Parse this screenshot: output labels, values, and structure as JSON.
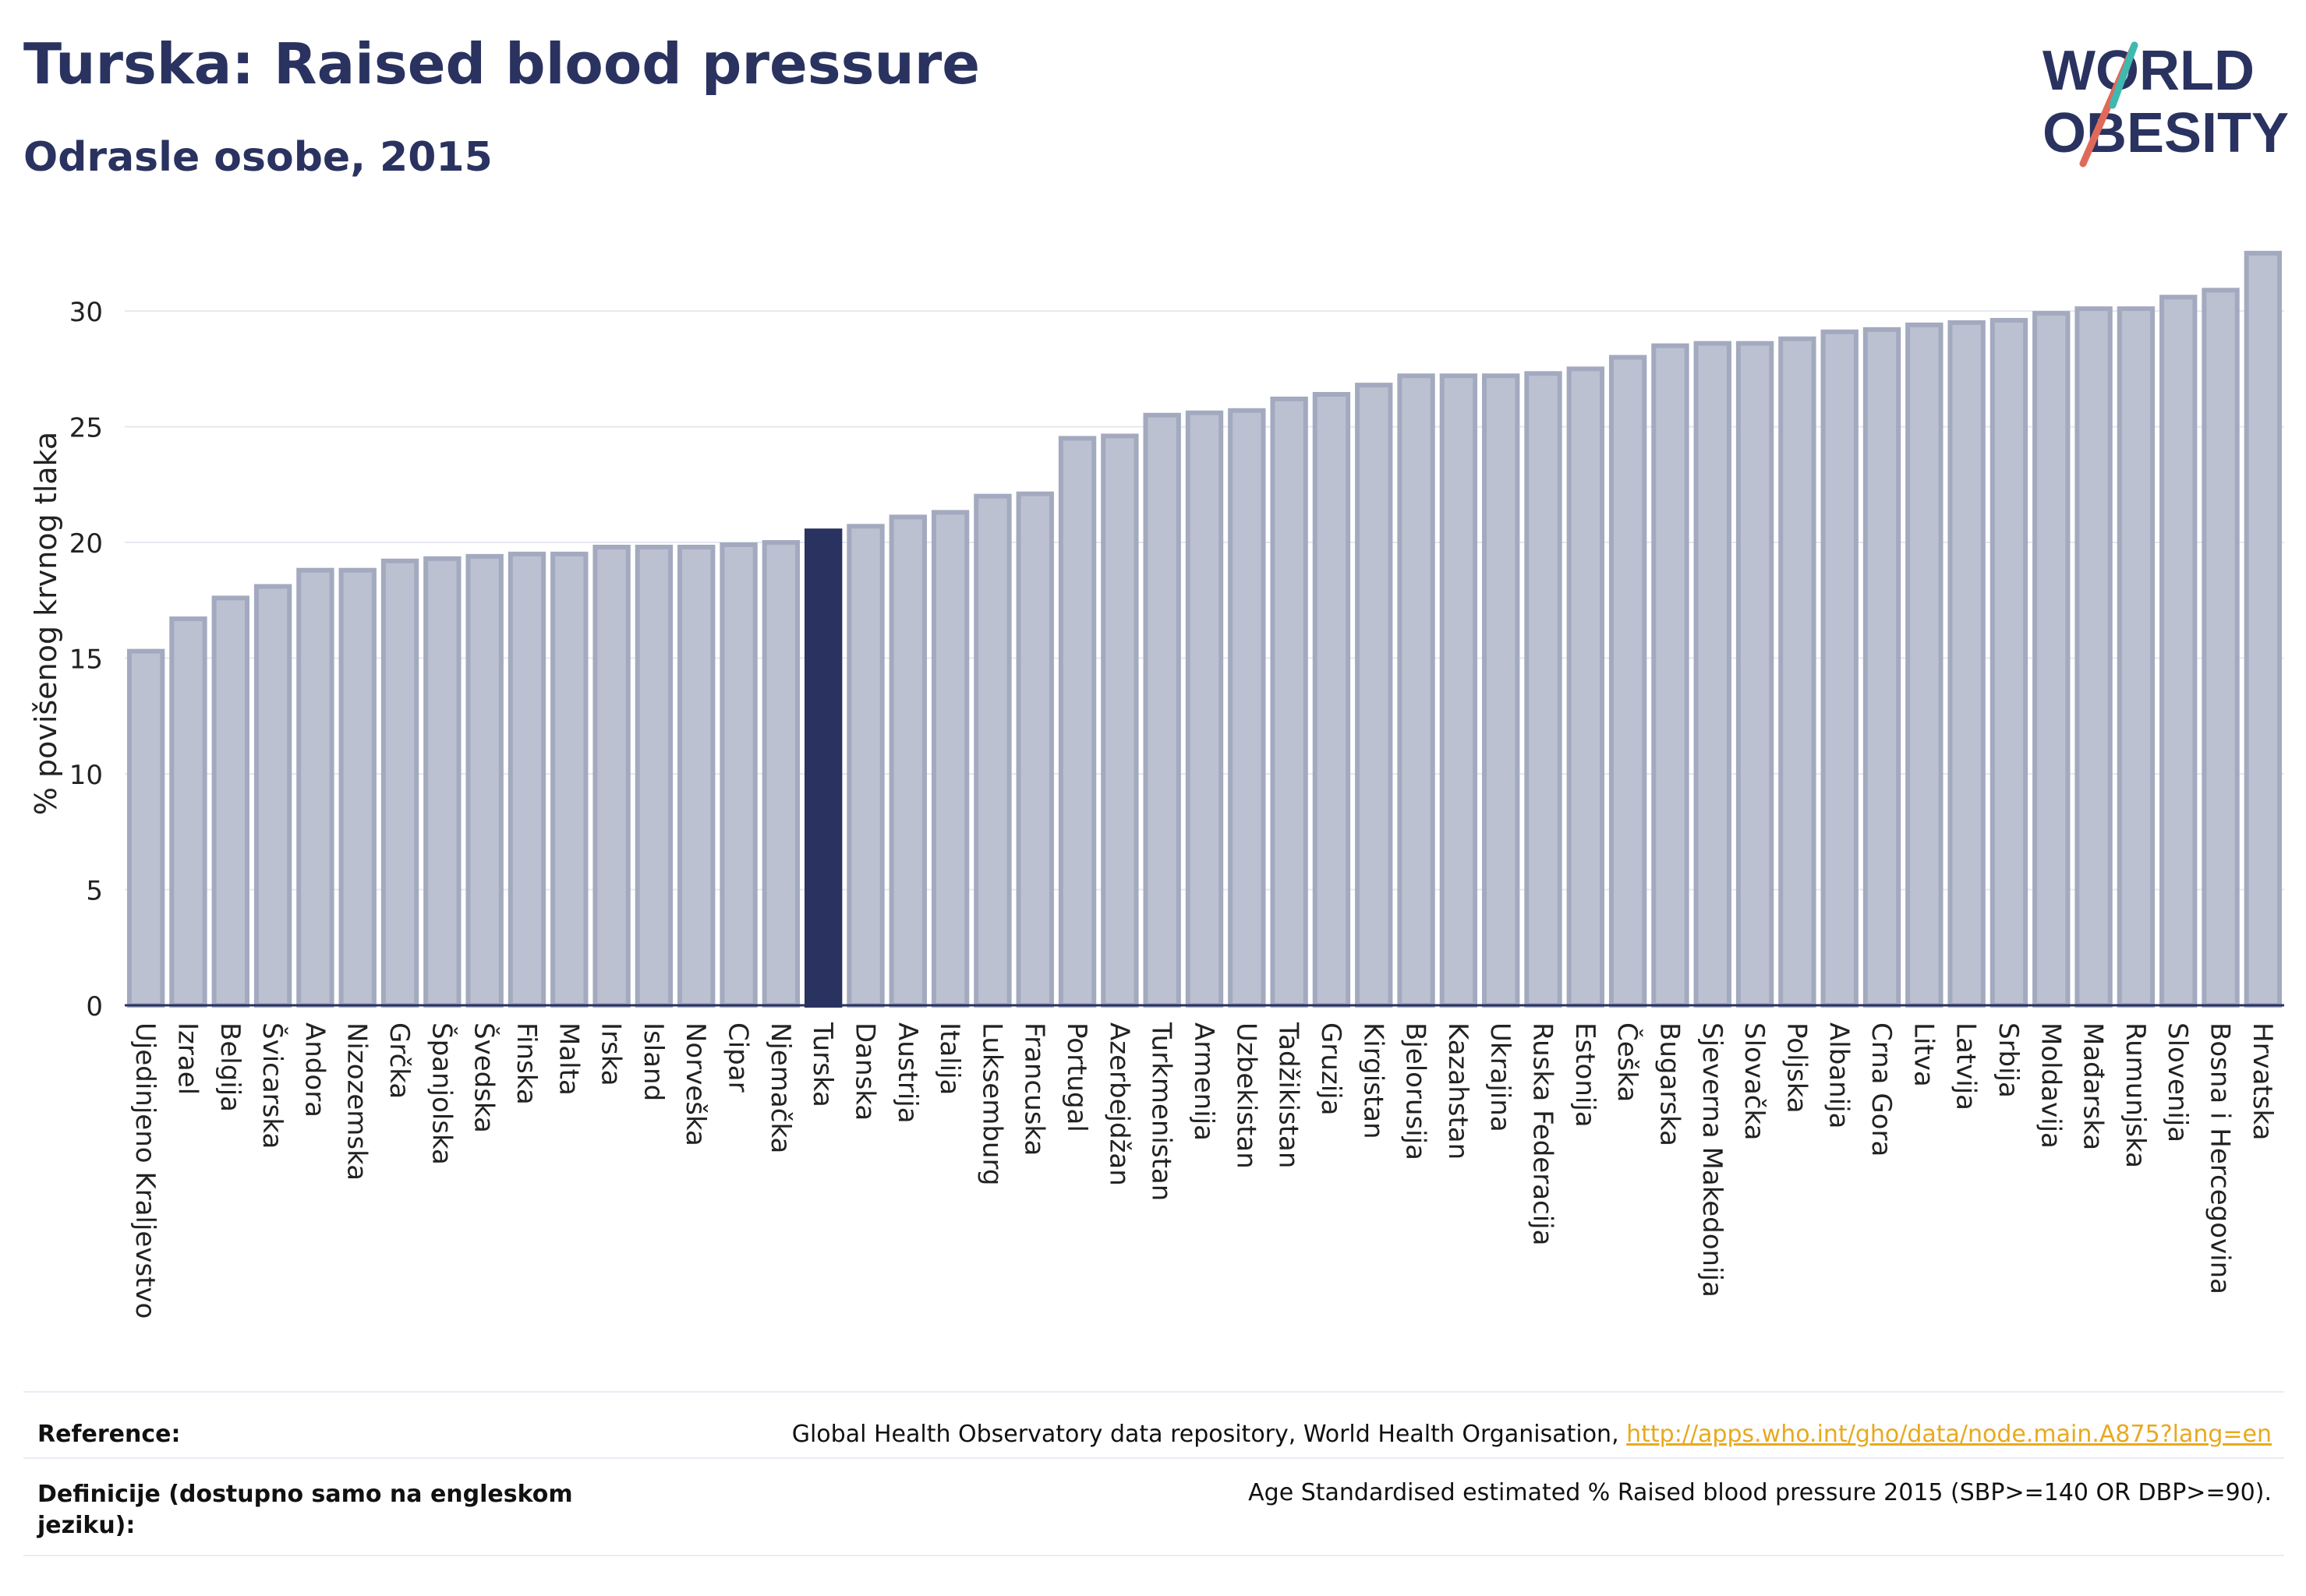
{
  "header": {
    "title": "Turska: Raised blood pressure",
    "subtitle": "Odrasle osobe, 2015"
  },
  "logo": {
    "line1": "WORLD",
    "line2": "OBESITY"
  },
  "colors": {
    "bar": "#bcc1d1",
    "bar_stroke": "#a3aabf",
    "highlight": "#2a3260",
    "text": "#2a3260",
    "link": "#e8a91e"
  },
  "chart_data": {
    "type": "bar",
    "ylabel": "% povišenog krvnog tlaka",
    "ylim": [
      0,
      33
    ],
    "yticks": [
      0,
      5,
      10,
      15,
      20,
      25,
      30
    ],
    "grid": true,
    "highlight": "Turska",
    "categories": [
      "Ujedinjeno Kraljevstvo",
      "Izrael",
      "Belgija",
      "Švicarska",
      "Andora",
      "Nizozemska",
      "Grčka",
      "Španjolska",
      "Švedska",
      "Finska",
      "Malta",
      "Irska",
      "Island",
      "Norveška",
      "Cipar",
      "Njemačka",
      "Turska",
      "Danska",
      "Austrija",
      "Italija",
      "Luksemburg",
      "Francuska",
      "Portugal",
      "Azerbejdžan",
      "Turkmenistan",
      "Armenija",
      "Uzbekistan",
      "Tadžikistan",
      "Gruzija",
      "Kirgistan",
      "Bjelorusija",
      "Kazahstan",
      "Ukrajina",
      "Ruska Federacija",
      "Estonija",
      "Češka",
      "Bugarska",
      "Sjeverna Makedonija",
      "Slovačka",
      "Poljska",
      "Albanija",
      "Crna Gora",
      "Litva",
      "Latvija",
      "Srbija",
      "Moldavija",
      "Mađarska",
      "Rumunjska",
      "Slovenija",
      "Bosna i Hercegovina",
      "Hrvatska"
    ],
    "values": [
      15.3,
      16.7,
      17.6,
      18.1,
      18.8,
      18.8,
      19.2,
      19.3,
      19.4,
      19.5,
      19.5,
      19.8,
      19.8,
      19.8,
      19.9,
      20.0,
      20.5,
      20.7,
      21.1,
      21.3,
      22.0,
      22.1,
      24.5,
      24.6,
      25.5,
      25.6,
      25.7,
      26.2,
      26.4,
      26.8,
      27.2,
      27.2,
      27.2,
      27.3,
      27.5,
      28.0,
      28.5,
      28.6,
      28.6,
      28.8,
      29.1,
      29.2,
      29.4,
      29.5,
      29.6,
      29.9,
      30.1,
      30.1,
      30.6,
      30.9,
      32.5
    ]
  },
  "footer": {
    "reference_label": "Reference:",
    "reference_text": "Global Health Observatory data repository, World Health Organisation, ",
    "reference_link": "http://apps.who.int/gho/data/node.main.A875?lang=en",
    "definition_label": "Definicije (dostupno samo na engleskom jeziku):",
    "definition_text": "Age Standardised estimated % Raised blood pressure 2015 (SBP>=140 OR DBP>=90)."
  }
}
